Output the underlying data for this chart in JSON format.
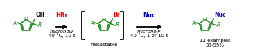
{
  "bg_color": "#ffffff",
  "furan_color": "#228B22",
  "hbr_color": "#FF0000",
  "nuc_color": "#0000CC",
  "br_color": "#FF0000",
  "arrow_color": "#000000",
  "text_color": "#000000",
  "label1_line1": "HBr",
  "label1_line2": "microflow",
  "label1_line3": "40 °C, 10 s",
  "label2_line1": "Nuc",
  "label2_line2": "microflow",
  "label2_line3": "40 °C, 1 or 10 s",
  "below_center": "metastable",
  "below_right_line1": "12 examples",
  "below_right_line2": "33-95%",
  "figwidth": 3.78,
  "figheight": 0.77,
  "dpi": 100
}
